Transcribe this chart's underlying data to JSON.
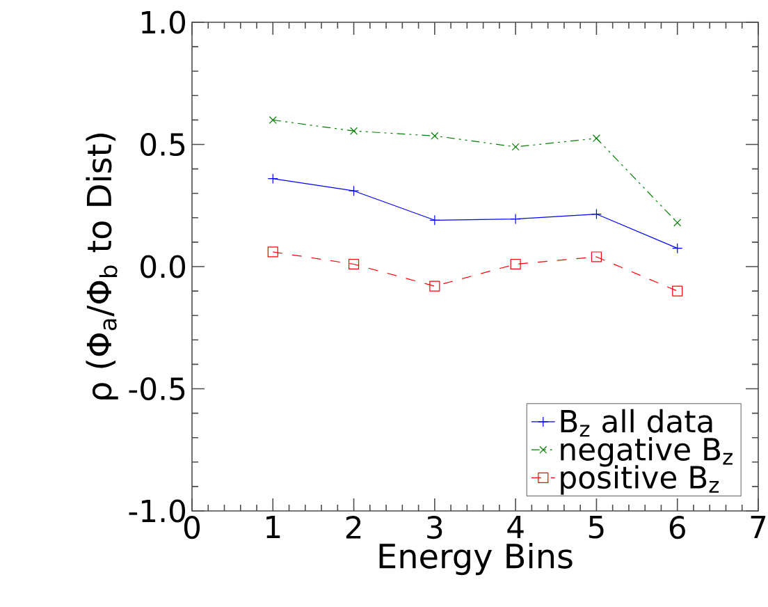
{
  "chart_data": {
    "type": "line",
    "xlabel": "Energy Bins",
    "ylabel": "ρ (Φ$_{a}$/Φ$_{b}$ to Dist)",
    "x": [
      1,
      2,
      3,
      4,
      5,
      6
    ],
    "series": [
      {
        "name": "B$_{z}$ all data",
        "color": "#0000ff",
        "marker": "plus",
        "line_style": "solid",
        "values": [
          0.36,
          0.31,
          0.19,
          0.195,
          0.215,
          0.075
        ]
      },
      {
        "name": "negative B$_{z}$",
        "color": "#008000",
        "marker": "cross",
        "line_style": "dashdotdot",
        "values": [
          0.6,
          0.555,
          0.535,
          0.49,
          0.525,
          0.18
        ]
      },
      {
        "name": "positive B$_{z}$",
        "color": "#ff0000",
        "marker": "square",
        "line_style": "dashed",
        "values": [
          0.06,
          0.01,
          -0.08,
          0.01,
          0.04,
          -0.1
        ]
      }
    ],
    "xlim": [
      0,
      7
    ],
    "ylim": [
      -1.0,
      1.0
    ],
    "xticks": [
      0,
      1,
      2,
      3,
      4,
      5,
      6,
      7
    ],
    "yticks": [
      {
        "value": -1.0,
        "label": "-1.0"
      },
      {
        "value": -0.5,
        "label": "-0.5"
      },
      {
        "value": 0.0,
        "label": "0.0"
      },
      {
        "value": 0.5,
        "label": "0.5"
      },
      {
        "value": 1.0,
        "label": "1.0"
      }
    ],
    "grid": false,
    "legend": "bottom right"
  }
}
